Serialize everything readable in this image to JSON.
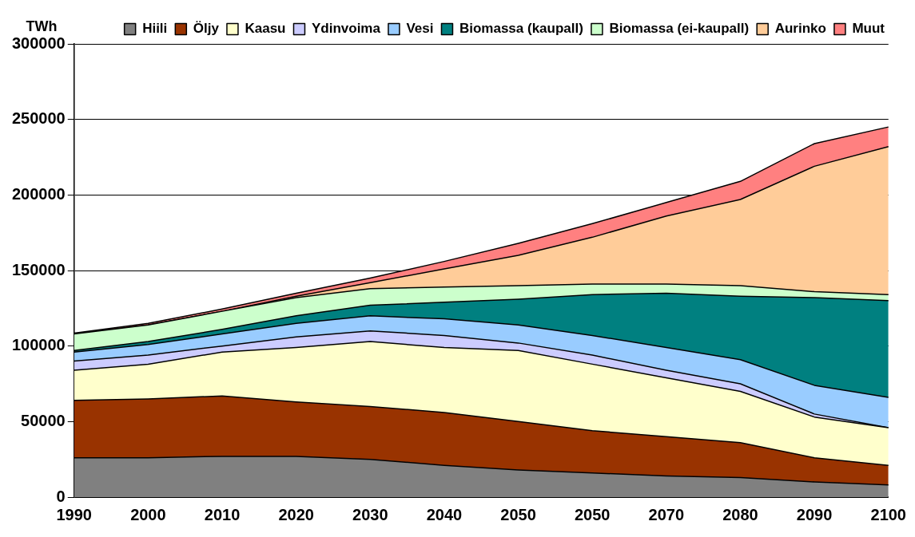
{
  "chart_data": {
    "type": "area",
    "stacked": true,
    "ylabel": "TWh",
    "categories": [
      "1990",
      "2000",
      "2010",
      "2020",
      "2030",
      "2040",
      "2050",
      "2050",
      "2070",
      "2080",
      "2090",
      "2100"
    ],
    "ylim": [
      0,
      300000
    ],
    "yticks": [
      0,
      50000,
      100000,
      150000,
      200000,
      250000,
      300000
    ],
    "grid": "y",
    "legend": "top right",
    "series": [
      {
        "name": "Hiili",
        "color": "#808080",
        "values": [
          26000,
          26000,
          27000,
          27000,
          25000,
          21000,
          18000,
          16000,
          14000,
          13000,
          10000,
          8000
        ]
      },
      {
        "name": "Öljy",
        "color": "#993300",
        "values": [
          38000,
          39000,
          40000,
          36000,
          35000,
          35000,
          32000,
          28000,
          26000,
          23000,
          16000,
          13000
        ]
      },
      {
        "name": "Kaasu",
        "color": "#ffffcc",
        "values": [
          20000,
          23000,
          29000,
          36000,
          43000,
          43000,
          47000,
          44000,
          39000,
          34000,
          27000,
          25000
        ]
      },
      {
        "name": "Ydinvoima",
        "color": "#ccccff",
        "values": [
          6000,
          6000,
          4000,
          7000,
          7000,
          8000,
          5000,
          6000,
          5000,
          5000,
          2000,
          0
        ]
      },
      {
        "name": "Vesi",
        "color": "#99ccff",
        "values": [
          6000,
          7000,
          8000,
          9000,
          10000,
          11000,
          12000,
          13000,
          15000,
          16000,
          19000,
          20000
        ]
      },
      {
        "name": "Biomassa (kaupall)",
        "color": "#008080",
        "values": [
          1000,
          2000,
          3000,
          5000,
          7000,
          11000,
          17000,
          27000,
          36000,
          42000,
          58000,
          64000
        ]
      },
      {
        "name": "Biomassa (ei-kaupall)",
        "color": "#ccffcc",
        "values": [
          11000,
          11000,
          12000,
          12000,
          11000,
          10000,
          9000,
          7000,
          6000,
          7000,
          4000,
          4000
        ]
      },
      {
        "name": "Aurinko",
        "color": "#ffcc99",
        "values": [
          0,
          0,
          0,
          1000,
          4000,
          12000,
          20000,
          31000,
          45000,
          57000,
          83000,
          98000
        ]
      },
      {
        "name": "Muut",
        "color": "#ff8080",
        "values": [
          500,
          1000,
          1500,
          2000,
          3000,
          5000,
          8000,
          9000,
          9000,
          12000,
          15000,
          13000
        ]
      }
    ]
  }
}
